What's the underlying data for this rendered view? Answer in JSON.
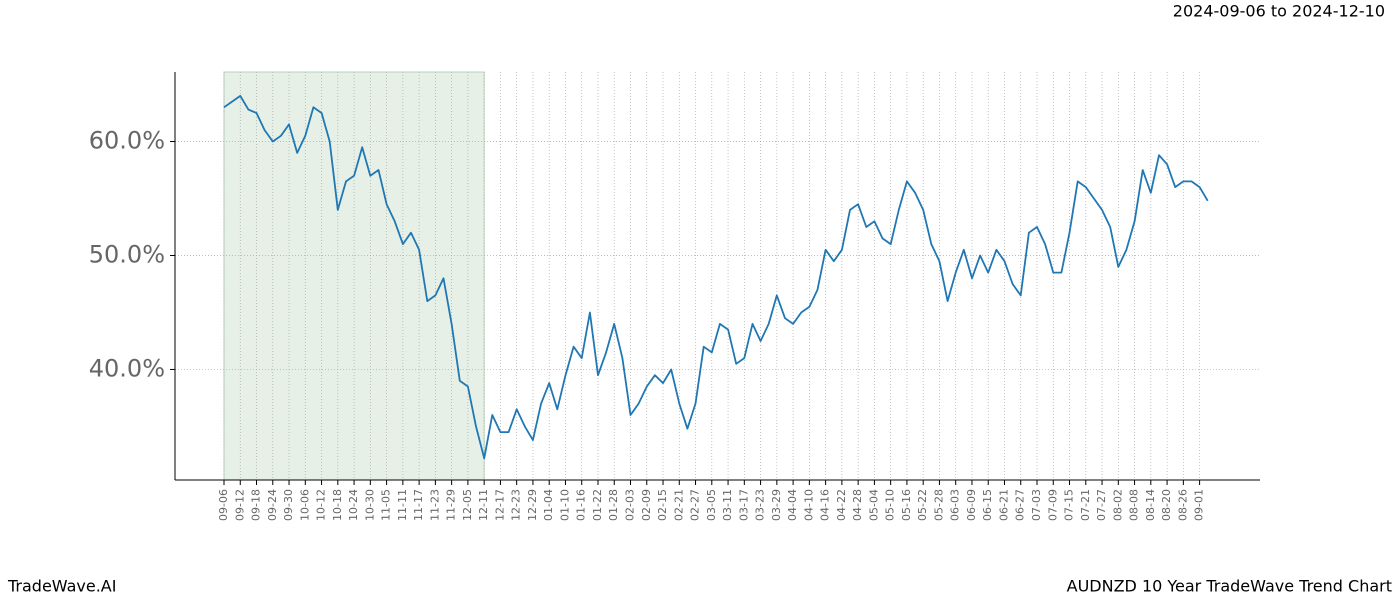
{
  "chart_data": {
    "type": "line",
    "date_range": "2024-09-06 to 2024-12-10",
    "footer_left": "TradeWave.AI",
    "footer_right": "AUDNZD 10 Year TradeWave Trend Chart",
    "highlight_start": "09-06",
    "highlight_end": "12-11",
    "highlight_color": "#e6f0e6",
    "categories": [
      "09-06",
      null,
      "09-12",
      null,
      "09-18",
      null,
      "09-24",
      null,
      "09-30",
      null,
      "10-06",
      null,
      "10-12",
      null,
      "10-18",
      null,
      "10-24",
      null,
      "10-30",
      null,
      "11-05",
      null,
      "11-11",
      null,
      "11-17",
      null,
      "11-23",
      null,
      "11-29",
      null,
      "12-05",
      null,
      "12-11",
      null,
      "12-17",
      null,
      "12-23",
      null,
      "12-29",
      null,
      "01-04",
      null,
      "01-10",
      null,
      "01-16",
      null,
      "01-22",
      null,
      "01-28",
      null,
      "02-03",
      null,
      "02-09",
      null,
      "02-15",
      null,
      "02-21",
      null,
      "02-27",
      null,
      "03-05",
      null,
      "03-11",
      null,
      "03-17",
      null,
      "03-23",
      null,
      "03-29",
      null,
      "04-04",
      null,
      "04-10",
      null,
      "04-16",
      null,
      "04-22",
      null,
      "04-28",
      null,
      "05-04",
      null,
      "05-10",
      null,
      "05-16",
      null,
      "05-22",
      null,
      "05-28",
      null,
      "06-03",
      null,
      "06-09",
      null,
      "06-15",
      null,
      "06-21",
      null,
      "06-27",
      null,
      "07-03",
      null,
      "07-09",
      null,
      "07-15",
      null,
      "07-21",
      null,
      "07-27",
      null,
      "08-02",
      null,
      "08-08",
      null,
      "08-14",
      null,
      "08-20",
      null,
      "08-26",
      null,
      "09-01",
      null
    ],
    "series": [
      {
        "color": "#1f77b4",
        "values": [
          63.0,
          63.5,
          64.0,
          62.8,
          62.5,
          61.0,
          60.0,
          60.5,
          61.5,
          59.0,
          60.5,
          63.0,
          62.5,
          60.0,
          54.0,
          56.5,
          57.0,
          59.5,
          57.0,
          57.5,
          54.5,
          53.0,
          51.0,
          52.0,
          50.5,
          46.0,
          46.5,
          48.0,
          44.0,
          39.0,
          38.5,
          35.0,
          32.2,
          36.0,
          34.5,
          34.5,
          36.5,
          35.0,
          33.8,
          37.0,
          38.8,
          36.5,
          39.5,
          42.0,
          41.0,
          45.0,
          39.5,
          41.5,
          44.0,
          41.0,
          36.0,
          37.0,
          38.5,
          39.5,
          38.8,
          40.0,
          37.0,
          34.8,
          37.0,
          42.0,
          41.5,
          44.0,
          43.5,
          40.5,
          41.0,
          44.0,
          42.5,
          44.0,
          46.5,
          44.5,
          44.0,
          45.0,
          45.5,
          47.0,
          50.5,
          49.5,
          50.5,
          54.0,
          54.5,
          52.5,
          53.0,
          51.5,
          51.0,
          54.0,
          56.5,
          55.5,
          54.0,
          51.0,
          49.5,
          46.0,
          48.5,
          50.5,
          48.0,
          50.0,
          48.5,
          50.5,
          49.5,
          47.5,
          46.5,
          52.0,
          52.5,
          51.0,
          48.5,
          48.5,
          52.0,
          56.5,
          56.0,
          55.0,
          54.0,
          52.5,
          49.0,
          50.5,
          53.0,
          57.5,
          55.5,
          58.8,
          58.0,
          56.0,
          56.5,
          56.5,
          56.0,
          54.8
        ]
      }
    ],
    "ylim": [
      30.3,
      66.1
    ],
    "yticks": [
      {
        "value": 40,
        "label": "40.0%"
      },
      {
        "value": 50,
        "label": "50.0%"
      },
      {
        "value": 60,
        "label": "60.0%"
      }
    ],
    "grid": true
  }
}
